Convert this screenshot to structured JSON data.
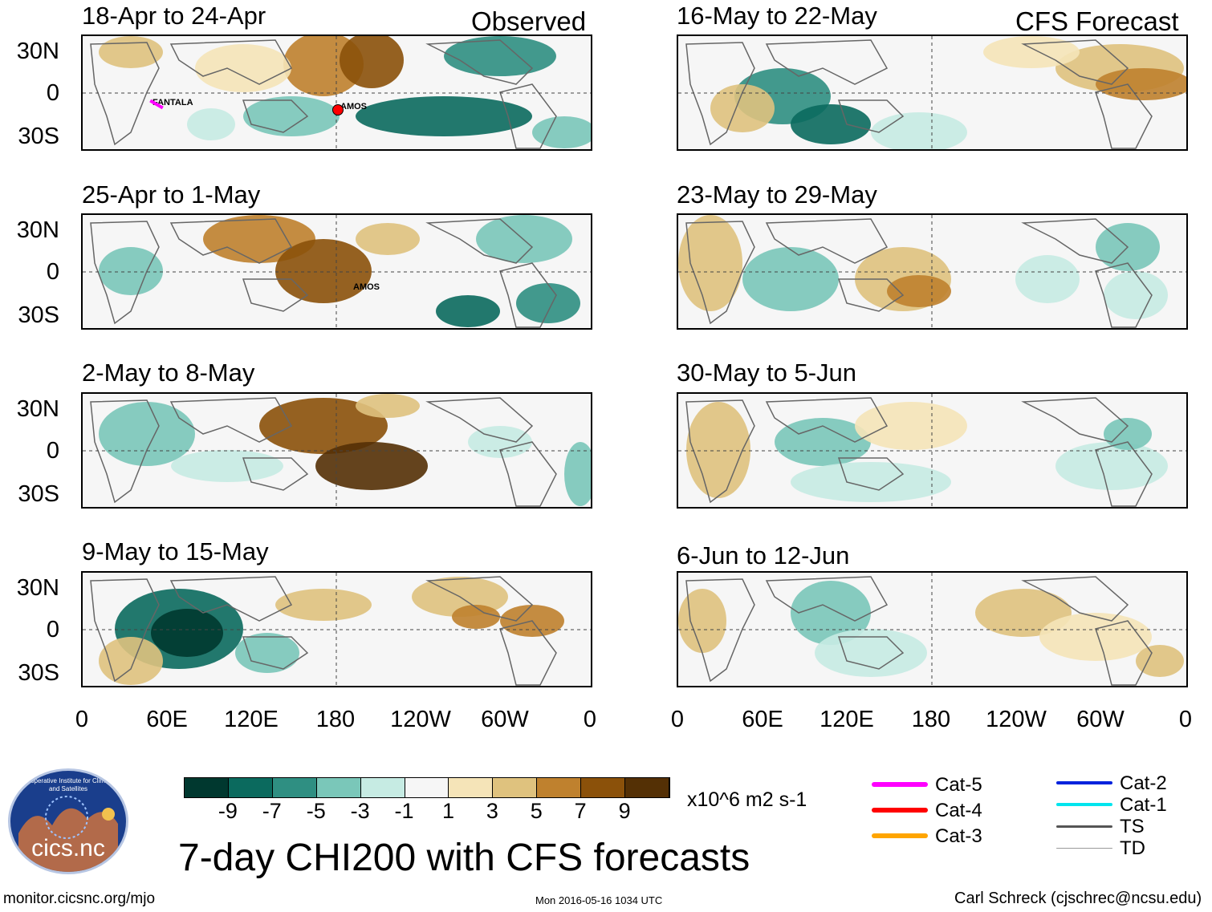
{
  "header": {
    "observed_label": "Observed",
    "forecast_label": "CFS Forecast"
  },
  "panels": {
    "observed": [
      {
        "title": "18-Apr to 24-Apr",
        "storms": [
          "FANTALA",
          "AMOS"
        ]
      },
      {
        "title": "25-Apr to 1-May",
        "storms": [
          "AMOS"
        ]
      },
      {
        "title": "2-May to 8-May",
        "storms": []
      },
      {
        "title": "9-May to 15-May",
        "storms": []
      }
    ],
    "forecast": [
      {
        "title": "16-May to 22-May"
      },
      {
        "title": "23-May to 29-May"
      },
      {
        "title": "30-May to 5-Jun"
      },
      {
        "title": "6-Jun to 12-Jun"
      }
    ]
  },
  "axes": {
    "latitude_labels": [
      "30N",
      "0",
      "30S"
    ],
    "longitude_labels": [
      "0",
      "60E",
      "120E",
      "180",
      "120W",
      "60W",
      "0"
    ]
  },
  "colorbar": {
    "colors": [
      "#00382f",
      "#0b6a5e",
      "#2f8f82",
      "#7ac7b9",
      "#c6ebe3",
      "#f6f6f6",
      "#f5e4b8",
      "#dfc27e",
      "#bf812e",
      "#8b510a",
      "#543005"
    ],
    "tick_labels": [
      "-9",
      "-7",
      "-5",
      "-3",
      "-1",
      "1",
      "3",
      "5",
      "7",
      "9"
    ],
    "units": "x10^6 m2 s-1"
  },
  "main_title": "7-day CHI200 with CFS forecasts",
  "legend": {
    "items": [
      {
        "label": "Cat-5",
        "color": "#ff00ff"
      },
      {
        "label": "Cat-4",
        "color": "#ff0000"
      },
      {
        "label": "Cat-3",
        "color": "#ffa500"
      },
      {
        "label": "Cat-2",
        "color": "#0022dd"
      },
      {
        "label": "Cat-1",
        "color": "#00e5ee"
      },
      {
        "label": "TS",
        "color": "#555555"
      },
      {
        "label": "TD",
        "color": "#999999"
      }
    ]
  },
  "logo": {
    "text": "cics.nc",
    "ring_text": "Cooperative Institute for Climate and Satellites"
  },
  "footer": {
    "url": "monitor.cicsnc.org/mjo",
    "timestamp": "Mon 2016-05-16 1034 UTC",
    "credit": "Carl Schreck (cjschrec@ncsu.edu)"
  }
}
